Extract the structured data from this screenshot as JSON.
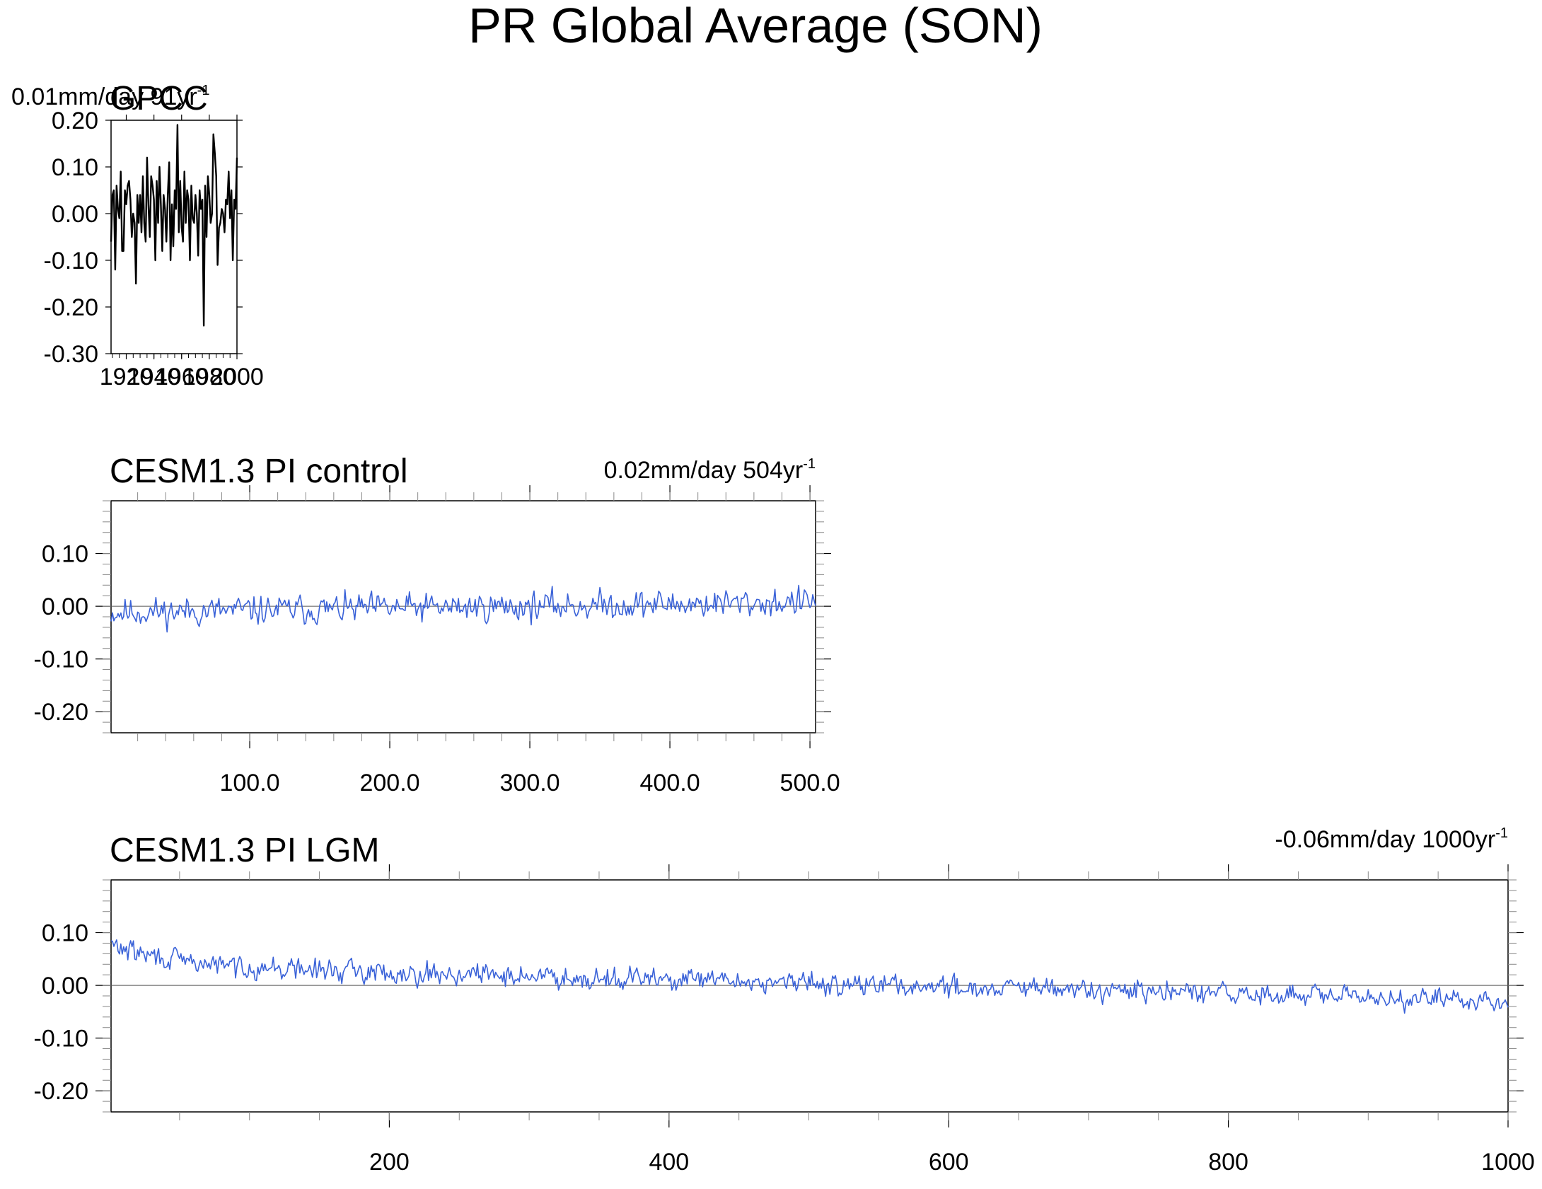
{
  "page_title": "PR Global Average (SON)",
  "chart_data": [
    {
      "type": "line",
      "title": "GPCC",
      "trend_label": "0.01mm/day 91yr",
      "trend_sup": "-1",
      "xlim": [
        1909,
        2000
      ],
      "ylim": [
        -0.3,
        0.2
      ],
      "y_ticks": [
        "0.20",
        "0.10",
        "0.00",
        "-0.10",
        "-0.20",
        "-0.30"
      ],
      "x_tick_labels": [
        "1920",
        "1940",
        "1960",
        "1980",
        "2000"
      ],
      "series": [
        {
          "color": "#000000",
          "x": [
            1909,
            1910,
            1911,
            1912,
            1913,
            1914,
            1915,
            1916,
            1917,
            1918,
            1919,
            1920,
            1921,
            1922,
            1923,
            1924,
            1925,
            1926,
            1927,
            1928,
            1929,
            1930,
            1931,
            1932,
            1933,
            1934,
            1935,
            1936,
            1937,
            1938,
            1939,
            1940,
            1941,
            1942,
            1943,
            1944,
            1945,
            1946,
            1947,
            1948,
            1949,
            1950,
            1951,
            1952,
            1953,
            1954,
            1955,
            1956,
            1957,
            1958,
            1959,
            1960,
            1961,
            1962,
            1963,
            1964,
            1965,
            1966,
            1967,
            1968,
            1969,
            1970,
            1971,
            1972,
            1973,
            1974,
            1975,
            1976,
            1977,
            1978,
            1979,
            1980,
            1981,
            1982,
            1983,
            1984,
            1985,
            1986,
            1987,
            1988,
            1989,
            1990,
            1991,
            1992,
            1993,
            1994,
            1995,
            1996,
            1997,
            1998,
            1999,
            2000
          ],
          "values": [
            -0.06,
            0.04,
            0.05,
            -0.12,
            0.06,
            0.01,
            -0.01,
            0.09,
            -0.08,
            -0.08,
            0.05,
            0.02,
            0.06,
            0.07,
            0.03,
            -0.05,
            0.0,
            -0.02,
            -0.15,
            0.04,
            -0.02,
            0.04,
            -0.04,
            0.08,
            -0.02,
            -0.06,
            0.12,
            0.02,
            -0.05,
            0.08,
            0.06,
            0.03,
            -0.1,
            0.07,
            -0.02,
            0.1,
            0.02,
            -0.08,
            0.04,
            0.01,
            -0.06,
            0.04,
            0.11,
            -0.1,
            0.02,
            -0.07,
            0.05,
            0.01,
            0.19,
            -0.04,
            0.07,
            -0.03,
            -0.06,
            0.09,
            -0.02,
            0.05,
            0.03,
            -0.1,
            0.06,
            -0.01,
            -0.02,
            0.04,
            0.0,
            -0.09,
            0.05,
            0.01,
            0.03,
            -0.24,
            0.06,
            -0.05,
            0.08,
            0.04,
            -0.02,
            0.0,
            0.17,
            0.13,
            0.08,
            -0.11,
            -0.03,
            -0.02,
            0.01,
            0.0,
            -0.04,
            0.03,
            0.02,
            0.09,
            -0.01,
            0.05,
            -0.1,
            0.03,
            0.01,
            0.12
          ]
        }
      ]
    },
    {
      "type": "line",
      "title": "CESM1.3 PI control",
      "trend_label": "0.02mm/day 504yr",
      "trend_sup": "-1",
      "xlim": [
        1,
        504
      ],
      "ylim": [
        -0.24,
        0.2
      ],
      "y_ticks": [
        "0.10",
        "0.00",
        "-0.10",
        "-0.20"
      ],
      "x_tick_labels": [
        "100.0",
        "200.0",
        "300.0",
        "400.0",
        "500.0"
      ],
      "series": [
        {
          "color": "#3a62d8",
          "generator": {
            "n": 504,
            "seed": 11,
            "trend_start": -0.012,
            "trend_end": 0.008,
            "noise": 0.012,
            "steps": []
          }
        }
      ]
    },
    {
      "type": "line",
      "title": "CESM1.3 PI LGM",
      "trend_label": "-0.06mm/day 1000yr",
      "trend_sup": "-1",
      "xlim": [
        1,
        1000
      ],
      "ylim": [
        -0.24,
        0.2
      ],
      "y_ticks": [
        "0.10",
        "0.00",
        "-0.10",
        "-0.20"
      ],
      "x_tick_labels": [
        "200",
        "400",
        "600",
        "800",
        "1000"
      ],
      "series": [
        {
          "color": "#3a62d8",
          "generator": {
            "n": 1000,
            "seed": 29,
            "trend_start": 0.038,
            "trend_end": -0.03,
            "noise": 0.009,
            "steps": [
              [
                1,
                0.03
              ],
              [
                330,
                -0.012
              ]
            ],
            "start_bump": 0.04
          }
        }
      ]
    }
  ]
}
